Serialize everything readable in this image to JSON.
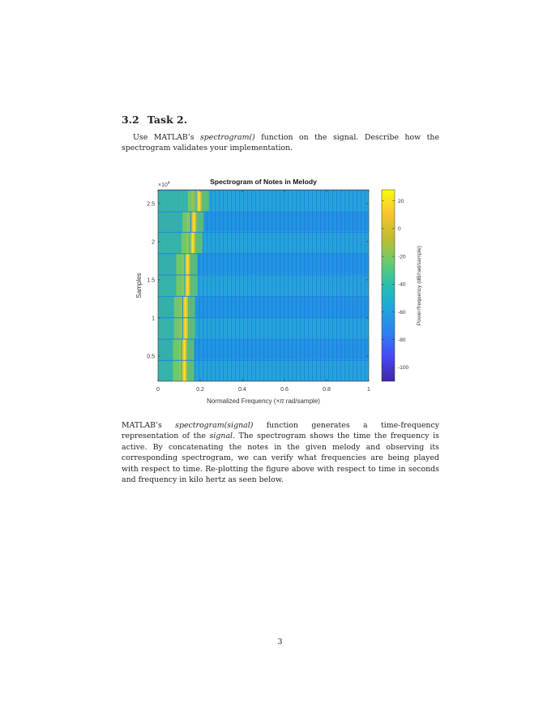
{
  "section": {
    "number": "3.2",
    "title": "Task 2."
  },
  "intro": {
    "t1": "Use MATLAB’s ",
    "fn": "spectrogram()",
    "t2": " function on the signal. Describe how the spectrogram validates your implementation."
  },
  "chart_data": {
    "type": "heatmap",
    "title": "Spectrogram of Notes in Melody",
    "xlabel_pre": "Normalized Frequency  (",
    "xlabel_sym": "×π",
    "xlabel_post": " rad/sample)",
    "ylabel": "Samples",
    "y_multiplier": "×10",
    "y_multiplier_exp": "4",
    "xlim": [
      0,
      1
    ],
    "ylim": [
      0.17,
      2.68
    ],
    "x_ticks": [
      "0",
      "0.2",
      "0.4",
      "0.6",
      "0.8",
      "1"
    ],
    "x_tick_values": [
      0,
      0.2,
      0.4,
      0.6,
      0.8,
      1
    ],
    "y_ticks": [
      "0.5",
      "1",
      "1.5",
      "2",
      "2.5"
    ],
    "y_tick_values": [
      0.5,
      1,
      1.5,
      2,
      2.5
    ],
    "colorbar": {
      "label": "Power/frequency (dB/rad/sample)",
      "ticks": [
        "20",
        "0",
        "-20",
        "-40",
        "-60",
        "-80",
        "-100"
      ],
      "tick_values": [
        20,
        0,
        -20,
        -40,
        -60,
        -80,
        -100
      ],
      "range": [
        -110,
        28
      ],
      "colormap": "parula"
    },
    "note_segments": [
      {
        "y_start": 0.17,
        "y_end": 0.45,
        "peak_freq": 0.125
      },
      {
        "y_start": 0.45,
        "y_end": 0.73,
        "peak_freq": 0.125
      },
      {
        "y_start": 0.73,
        "y_end": 1.01,
        "peak_freq": 0.13
      },
      {
        "y_start": 1.01,
        "y_end": 1.29,
        "peak_freq": 0.13
      },
      {
        "y_start": 1.29,
        "y_end": 1.57,
        "peak_freq": 0.14
      },
      {
        "y_start": 1.57,
        "y_end": 1.85,
        "peak_freq": 0.14
      },
      {
        "y_start": 1.85,
        "y_end": 2.13,
        "peak_freq": 0.165
      },
      {
        "y_start": 2.13,
        "y_end": 2.4,
        "peak_freq": 0.17
      },
      {
        "y_start": 2.4,
        "y_end": 2.68,
        "peak_freq": 0.195
      }
    ]
  },
  "body": {
    "t1": "MATLAB’s ",
    "fn": "spectrogram(signal)",
    "t2": " function generates a time-frequency representation of the ",
    "sig": "signal",
    "t3": ". The spectrogram shows the time the frequency is active. By concatenating the notes in the given melody and observing its corresponding spectrogram, we can verify what frequencies are being played with respect to time. Re-plotting the figure above with respect to time in seconds and frequency in kilo hertz as seen below."
  },
  "page_number": "3"
}
